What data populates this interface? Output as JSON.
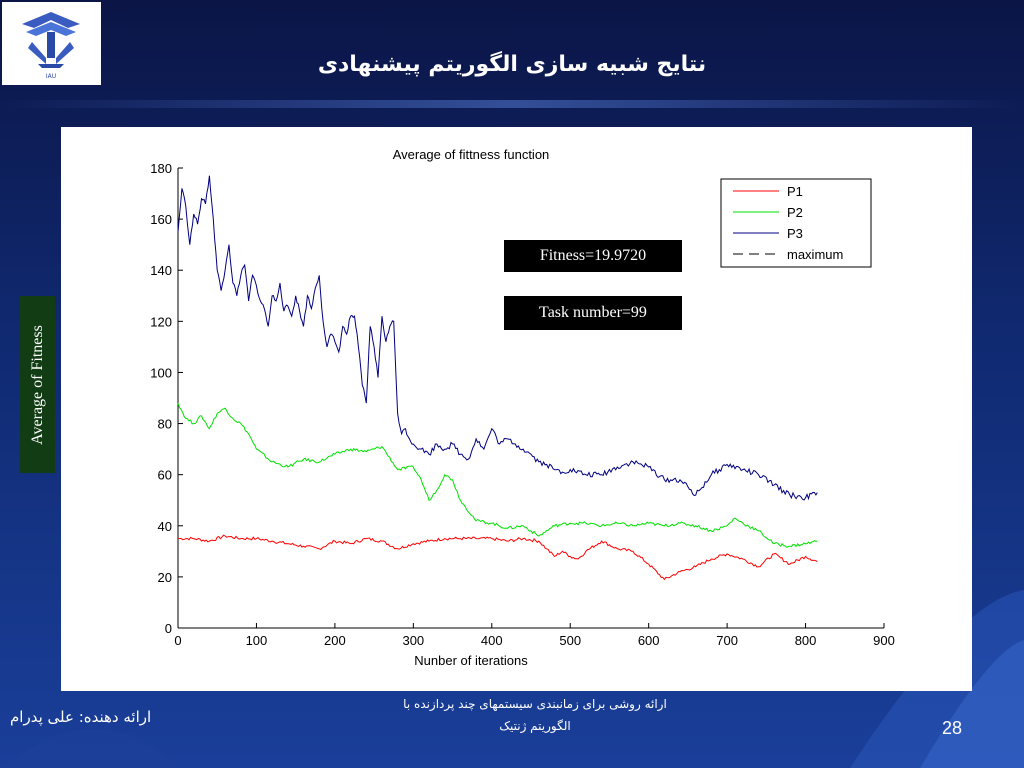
{
  "slide": {
    "title": "نتایج شبیه سازی الگوریتم پیشنهادی",
    "presenter": "ارائه دهنده: علی پدرام",
    "footer_line1": "ارائه روشی برای زمانبندی سیستمهای چند پردازنده با",
    "footer_line2": "الگوریتم ژنتیک",
    "page_number": "28",
    "y_label_box": "Average of Fitness",
    "annotation_fitness": "Fitness=19.9720",
    "annotation_task": "Task number=99",
    "logo_text": "IAU"
  },
  "colors": {
    "background": "#102a72",
    "p1": "#ff0000",
    "p2": "#00e000",
    "p3": "#000080",
    "maximum": "#000000",
    "ylabel_box": "#113c14"
  },
  "chart_data": {
    "type": "line",
    "title": "Average of fittness function",
    "xlabel": "Nunber of iterations",
    "ylabel": "",
    "xlim": [
      0,
      900
    ],
    "ylim": [
      0,
      180
    ],
    "xticks": [
      0,
      100,
      200,
      300,
      400,
      500,
      600,
      700,
      800,
      900
    ],
    "yticks": [
      0,
      20,
      40,
      60,
      80,
      100,
      120,
      140,
      160,
      180
    ],
    "grid": false,
    "legend_position": "top-right",
    "series": [
      {
        "name": "P1",
        "color": "#ff0000",
        "x": [
          0,
          20,
          40,
          60,
          80,
          100,
          120,
          140,
          160,
          180,
          200,
          220,
          240,
          260,
          280,
          300,
          320,
          340,
          360,
          380,
          400,
          420,
          440,
          460,
          470,
          480,
          490,
          500,
          510,
          520,
          540,
          560,
          580,
          600,
          620,
          640,
          660,
          680,
          700,
          720,
          740,
          760,
          780,
          800,
          815
        ],
        "y": [
          35,
          35,
          34,
          36,
          35,
          35,
          34,
          33,
          32,
          31,
          34,
          33,
          35,
          34,
          31,
          33,
          34,
          35,
          35,
          35,
          35,
          34,
          35,
          34,
          31,
          28,
          30,
          28,
          27,
          30,
          34,
          31,
          30,
          25,
          19,
          22,
          24,
          27,
          29,
          27,
          24,
          29,
          25,
          28,
          26
        ]
      },
      {
        "name": "P2",
        "color": "#00e000",
        "x": [
          0,
          10,
          20,
          30,
          40,
          50,
          60,
          70,
          80,
          90,
          100,
          120,
          140,
          160,
          180,
          200,
          220,
          240,
          260,
          280,
          300,
          310,
          320,
          330,
          340,
          350,
          360,
          380,
          400,
          420,
          440,
          460,
          480,
          500,
          520,
          540,
          560,
          580,
          600,
          620,
          640,
          660,
          680,
          700,
          710,
          720,
          740,
          760,
          780,
          800,
          815
        ],
        "y": [
          88,
          82,
          80,
          83,
          78,
          84,
          86,
          82,
          80,
          76,
          70,
          65,
          63,
          66,
          65,
          68,
          70,
          69,
          71,
          62,
          63,
          58,
          50,
          54,
          60,
          58,
          50,
          42,
          41,
          39,
          40,
          36,
          40,
          41,
          41,
          40,
          41,
          40,
          41,
          40,
          41,
          40,
          38,
          40,
          43,
          41,
          38,
          33,
          32,
          33,
          34
        ]
      },
      {
        "name": "P3",
        "color": "#000080",
        "x": [
          0,
          5,
          10,
          15,
          20,
          25,
          30,
          35,
          40,
          45,
          50,
          55,
          60,
          65,
          70,
          75,
          80,
          85,
          90,
          95,
          100,
          105,
          110,
          115,
          120,
          125,
          130,
          135,
          140,
          145,
          150,
          155,
          160,
          165,
          170,
          175,
          180,
          185,
          190,
          195,
          200,
          205,
          210,
          215,
          220,
          225,
          230,
          235,
          240,
          245,
          250,
          255,
          260,
          265,
          270,
          275,
          280,
          285,
          290,
          295,
          300,
          310,
          320,
          330,
          340,
          350,
          360,
          370,
          380,
          390,
          400,
          410,
          420,
          430,
          440,
          450,
          460,
          470,
          480,
          490,
          500,
          520,
          540,
          560,
          580,
          600,
          620,
          640,
          660,
          680,
          690,
          700,
          720,
          740,
          760,
          780,
          800,
          815
        ],
        "y": [
          155,
          172,
          165,
          150,
          162,
          158,
          168,
          166,
          177,
          160,
          140,
          132,
          140,
          150,
          135,
          130,
          138,
          142,
          128,
          138,
          134,
          128,
          125,
          118,
          130,
          128,
          135,
          124,
          126,
          122,
          130,
          124,
          118,
          130,
          125,
          133,
          138,
          120,
          110,
          115,
          112,
          108,
          118,
          115,
          122,
          122,
          110,
          95,
          88,
          118,
          110,
          98,
          122,
          112,
          118,
          120,
          84,
          76,
          78,
          74,
          72,
          70,
          68,
          72,
          70,
          72,
          68,
          66,
          74,
          70,
          78,
          72,
          74,
          72,
          70,
          68,
          65,
          64,
          62,
          61,
          62,
          60,
          60,
          63,
          65,
          63,
          58,
          58,
          52,
          60,
          62,
          64,
          62,
          60,
          56,
          52,
          51,
          53
        ]
      },
      {
        "name": "maximum",
        "color": "#000000",
        "dashed": true,
        "x": [],
        "y": []
      }
    ]
  }
}
